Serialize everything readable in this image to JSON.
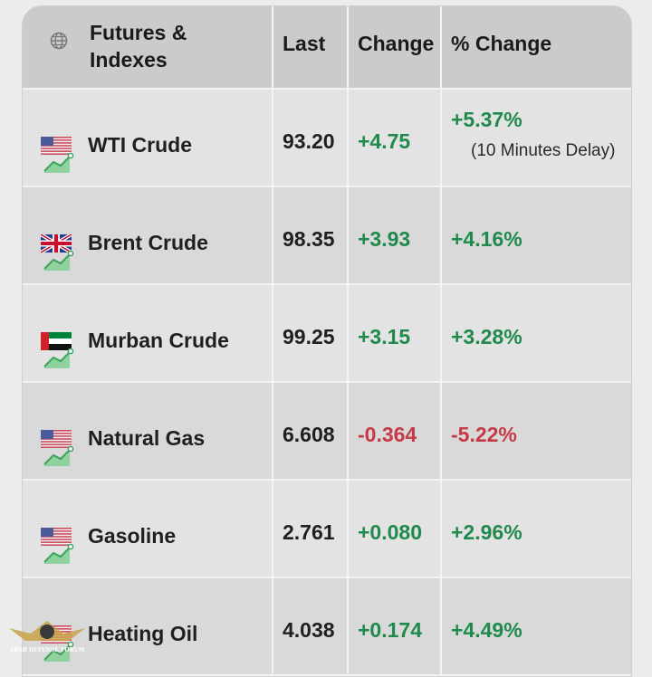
{
  "header": {
    "col_name": "Futures & Indexes",
    "col_name_line1": "Futures &",
    "col_name_line2": "Indexes",
    "col_last": "Last",
    "col_change": "Change",
    "col_pct_change": "% Change"
  },
  "rows": [
    {
      "name": "WTI Crude",
      "flag": "us-flag",
      "last": "93.20",
      "change": "+4.75",
      "pct": "+5.37%",
      "note": "(10 Minutes Delay)",
      "direction": "up"
    },
    {
      "name": "Brent Crude",
      "flag": "uk-flag",
      "last": "98.35",
      "change": "+3.93",
      "pct": "+4.16%",
      "direction": "up"
    },
    {
      "name": "Murban Crude",
      "flag": "uae-flag",
      "last": "99.25",
      "change": "+3.15",
      "pct": "+3.28%",
      "direction": "up"
    },
    {
      "name": "Natural Gas",
      "flag": "us-flag",
      "last": "6.608",
      "change": "-0.364",
      "pct": "-5.22%",
      "direction": "down"
    },
    {
      "name": "Gasoline",
      "flag": "us-flag",
      "last": "2.761",
      "change": "+0.080",
      "pct": "+2.96%",
      "direction": "up"
    },
    {
      "name": "Heating Oil",
      "flag": "us-flag",
      "last": "4.038",
      "change": "+0.174",
      "pct": "+4.49%",
      "direction": "up"
    }
  ],
  "colors": {
    "positive": "#1f8a4c",
    "negative": "#c63946",
    "header_bg": "#cbcbcb"
  },
  "watermark": {
    "text": "ARAB DEFENSE FORUM"
  }
}
